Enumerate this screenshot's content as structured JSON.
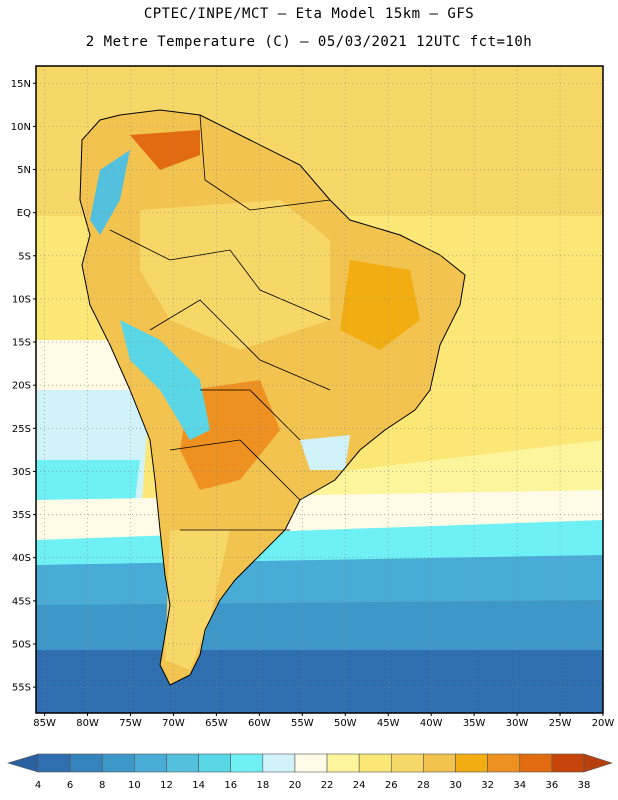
{
  "header": {
    "line1": "CPTEC/INPE/MCT –  Eta Model 15km – GFS",
    "line2": "2 Metre Temperature (C) – 05/03/2021 12UTC fct=10h"
  },
  "map": {
    "lat_labels": [
      "15N",
      "10N",
      "5N",
      "EQ",
      "5S",
      "10S",
      "15S",
      "20S",
      "25S",
      "30S",
      "35S",
      "40S",
      "45S",
      "50S",
      "55S"
    ],
    "lat_values": [
      15,
      10,
      5,
      0,
      -5,
      -10,
      -15,
      -20,
      -25,
      -30,
      -35,
      -40,
      -45,
      -50,
      -55
    ],
    "lon_labels": [
      "85W",
      "80W",
      "75W",
      "70W",
      "65W",
      "60W",
      "55W",
      "50W",
      "45W",
      "40W",
      "35W",
      "30W",
      "25W",
      "20W"
    ],
    "lon_values": [
      -85,
      -80,
      -75,
      -70,
      -65,
      -60,
      -55,
      -50,
      -45,
      -40,
      -35,
      -30,
      -25,
      -20
    ],
    "extent": {
      "lon": [
        -86,
        -20
      ],
      "lat": [
        -58,
        17
      ]
    },
    "grid": true
  },
  "colorbar": {
    "ticks": [
      "4",
      "6",
      "8",
      "10",
      "12",
      "14",
      "16",
      "18",
      "20",
      "22",
      "24",
      "26",
      "28",
      "30",
      "32",
      "34",
      "36",
      "38"
    ],
    "colors": [
      "#2f6fb0",
      "#3583bd",
      "#3d98c9",
      "#48acd6",
      "#53c1de",
      "#5ad7e6",
      "#6ef0f4",
      "#d2f2fa",
      "#fffbe6",
      "#fdf59b",
      "#fbe776",
      "#f8d769",
      "#f2c34f",
      "#f2ad13",
      "#ee9120",
      "#e26b12",
      "#c7440a"
    ],
    "low_color": "#2a5fa0",
    "high_color": "#b6400c"
  }
}
